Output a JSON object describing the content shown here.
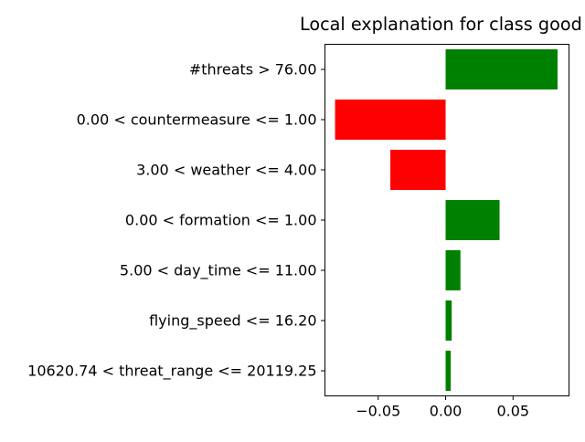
{
  "chart_data": {
    "type": "bar",
    "orientation": "horizontal",
    "title": "Local explanation for class good",
    "xlabel": "",
    "ylabel": "",
    "xlim": [
      -0.0895,
      0.0915
    ],
    "xticks": [
      {
        "value": -0.05,
        "label": "−0.05"
      },
      {
        "value": 0.0,
        "label": "0.00"
      },
      {
        "value": 0.05,
        "label": "0.05"
      }
    ],
    "grid": false,
    "legend": "none",
    "colors": {
      "positive": "#008000",
      "negative": "#ff0000"
    },
    "categories": [
      "#threats > 76.00",
      "0.00 < countermeasure <= 1.00",
      "3.00 < weather <= 4.00",
      "0.00 < formation <= 1.00",
      "5.00 < day_time <= 11.00",
      "flying_speed <= 16.20",
      "10620.74 < threat_range <= 20119.25"
    ],
    "values": [
      0.083,
      -0.082,
      -0.041,
      0.04,
      0.011,
      0.0045,
      0.0038
    ]
  }
}
